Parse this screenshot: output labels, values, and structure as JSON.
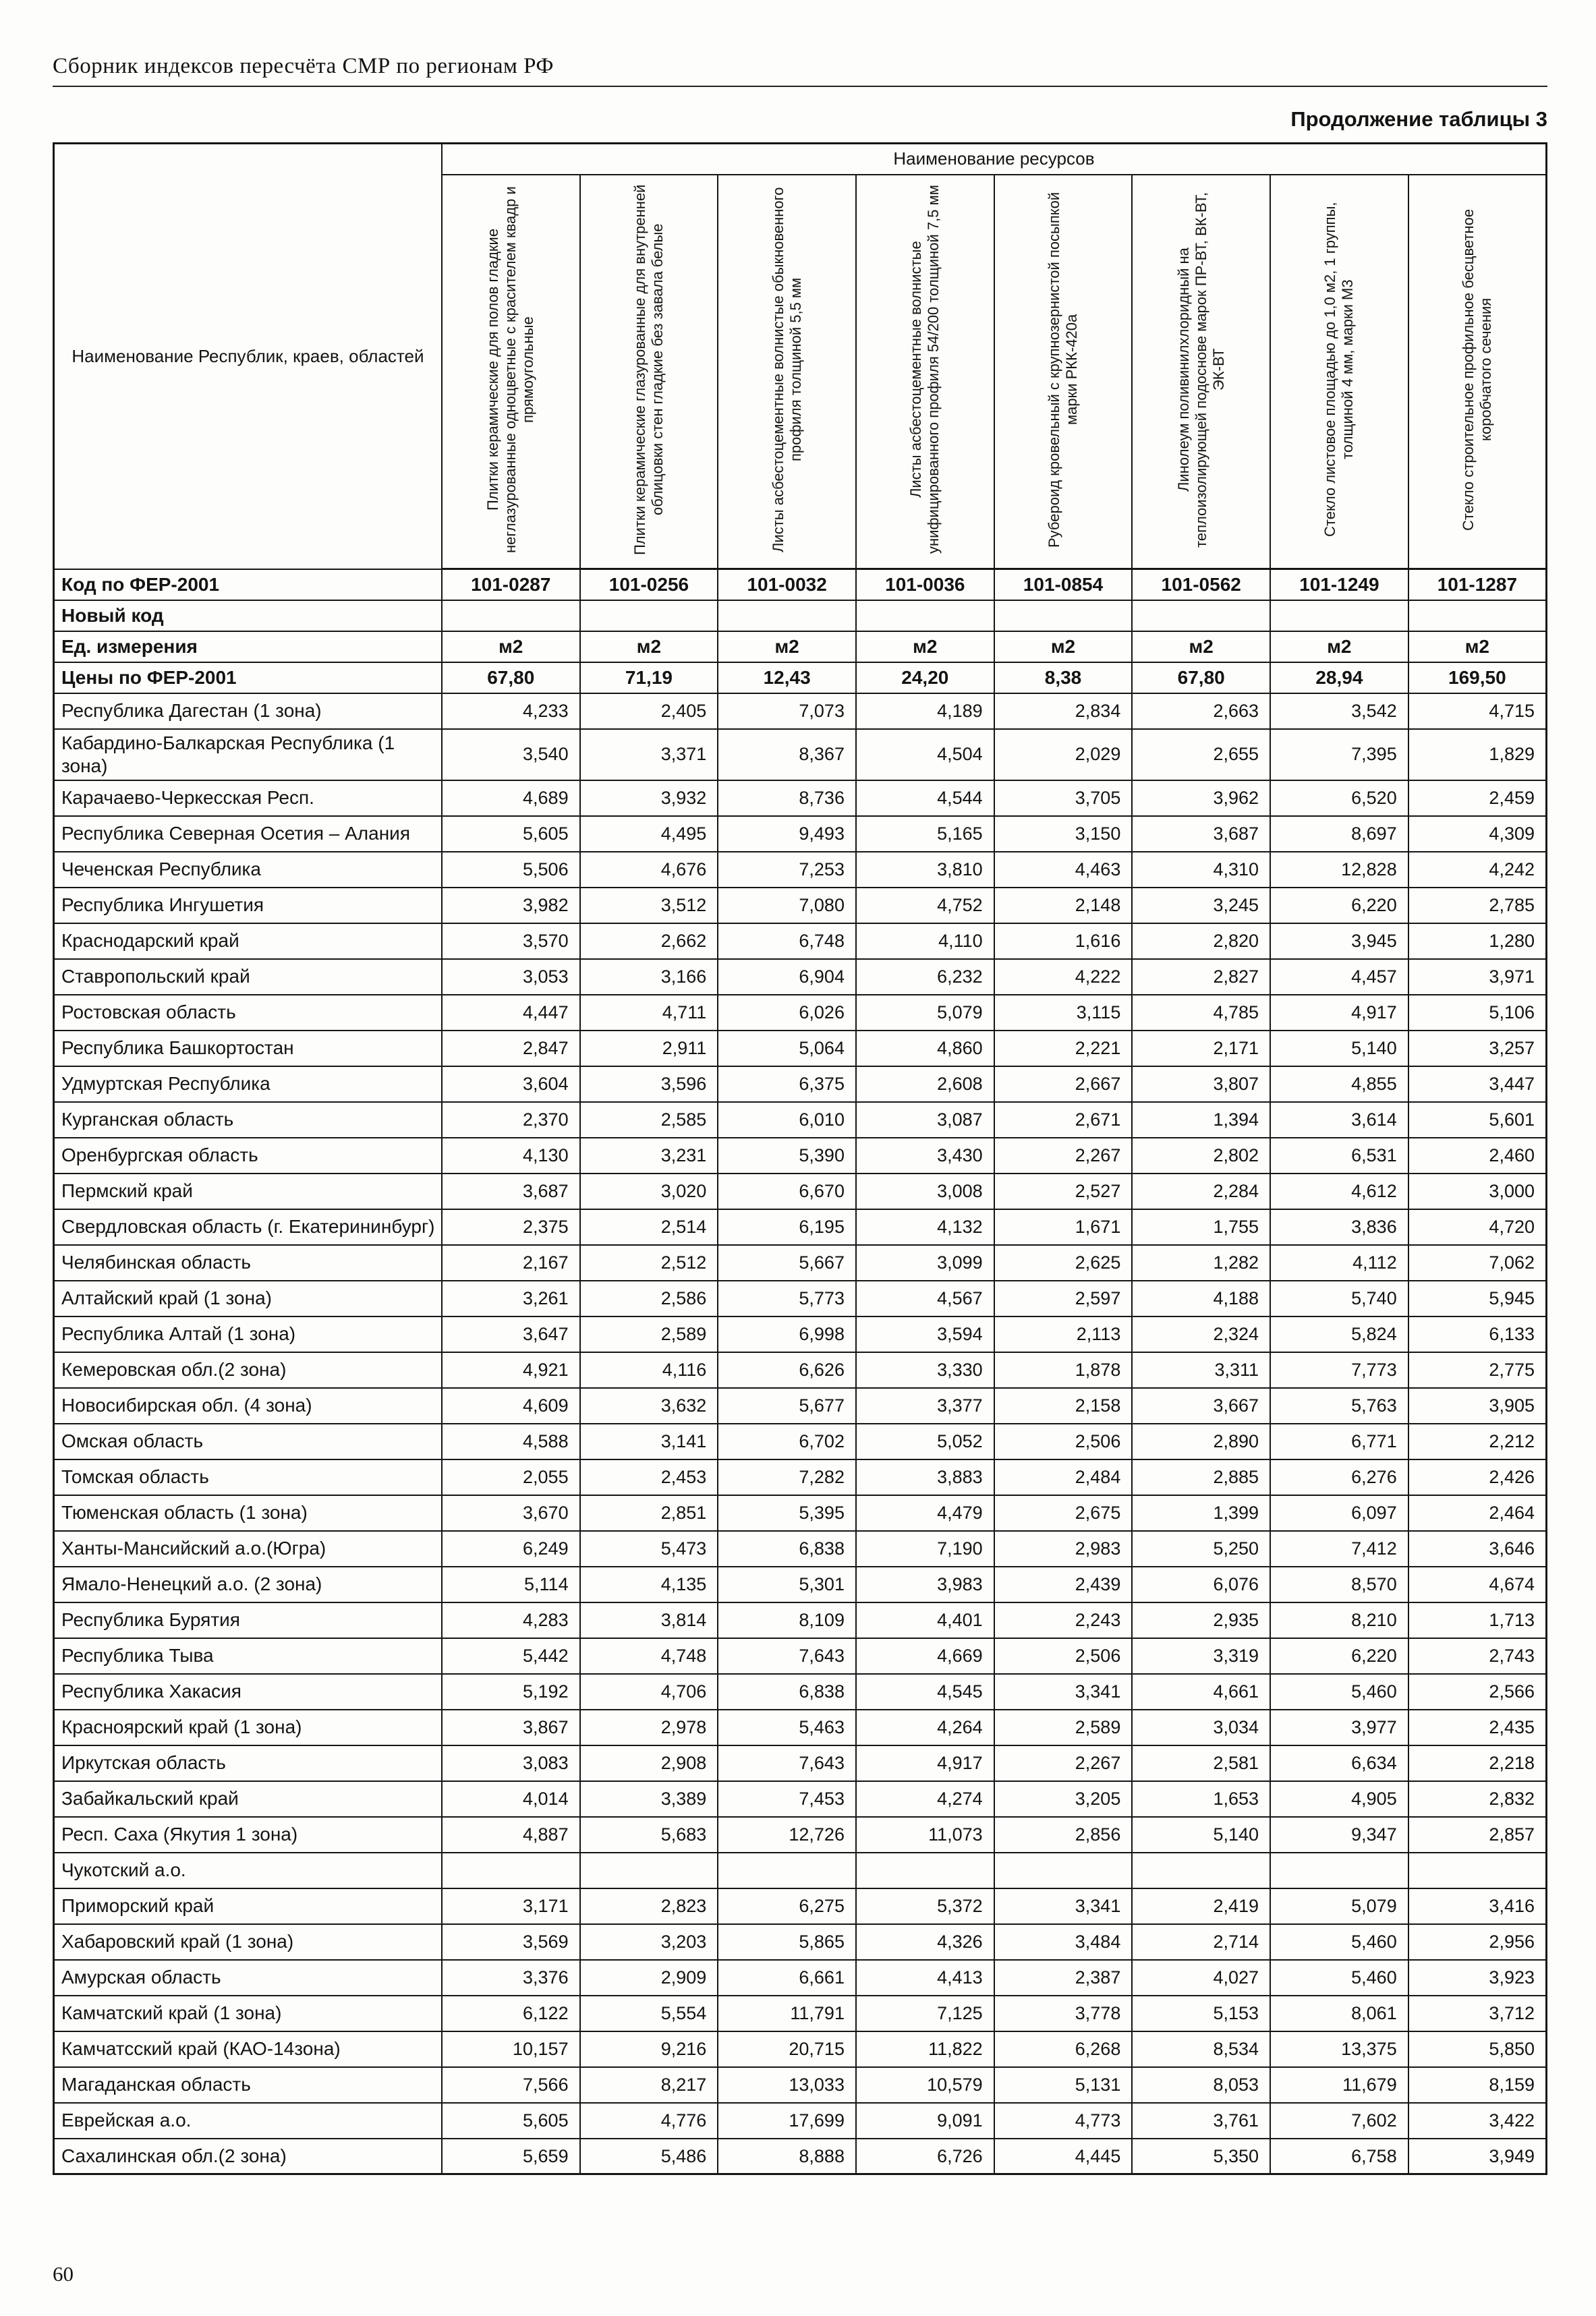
{
  "page": {
    "header_title": "Сборник индексов пересчёта СМР по регионам РФ",
    "table_caption": "Продолжение таблицы 3",
    "page_number": "60"
  },
  "table": {
    "resources_header": "Наименование ресурсов",
    "region_col_header": "Наименование Республик, краев, областей",
    "columns": [
      "Плитки керамические для полов гладкие неглазурованные одноцветные с красителем квадр и прямоугольные",
      "Плитки керамические глазурованные для внутренней облицовки стен гладкие без завала белые",
      "Листы асбестоцементные волнистые обыкновенного профиля толщиной 5,5 мм",
      "Листы асбестоцементные волнистые унифицированного профиля 54/200 толщиной 7,5 мм",
      "Рубероид кровельный с крупнозернистой посыпкой марки РКК-420а",
      "Линолеум поливинилхлоридный на теплоизолирующей подоснове марок ПР-ВТ, ВК-ВТ, ЭК-ВТ",
      "Стекло листовое площадью до 1,0 м2, 1 группы, толщиной 4 мм, марки М3",
      "Стекло строительное профильное бесцветное коробчатого сечения"
    ],
    "meta_rows": [
      {
        "label": "Код по ФЕР-2001",
        "values": [
          "101-0287",
          "101-0256",
          "101-0032",
          "101-0036",
          "101-0854",
          "101-0562",
          "101-1249",
          "101-1287"
        ]
      },
      {
        "label": "Новый код",
        "values": [
          "",
          "",
          "",
          "",
          "",
          "",
          "",
          ""
        ]
      },
      {
        "label": "Ед. измерения",
        "values": [
          "м2",
          "м2",
          "м2",
          "м2",
          "м2",
          "м2",
          "м2",
          "м2"
        ]
      },
      {
        "label": "Цены по ФЕР-2001",
        "values": [
          "67,80",
          "71,19",
          "12,43",
          "24,20",
          "8,38",
          "67,80",
          "28,94",
          "169,50"
        ]
      }
    ],
    "rows": [
      {
        "label": "Республика Дагестан (1 зона)",
        "values": [
          "4,233",
          "2,405",
          "7,073",
          "4,189",
          "2,834",
          "2,663",
          "3,542",
          "4,715"
        ]
      },
      {
        "label": "Кабардино-Балкарская Республика (1 зона)",
        "values": [
          "3,540",
          "3,371",
          "8,367",
          "4,504",
          "2,029",
          "2,655",
          "7,395",
          "1,829"
        ]
      },
      {
        "label": "Карачаево-Черкесская Респ.",
        "values": [
          "4,689",
          "3,932",
          "8,736",
          "4,544",
          "3,705",
          "3,962",
          "6,520",
          "2,459"
        ]
      },
      {
        "label": "Республика Северная Осетия – Алания",
        "values": [
          "5,605",
          "4,495",
          "9,493",
          "5,165",
          "3,150",
          "3,687",
          "8,697",
          "4,309"
        ]
      },
      {
        "label": "Чеченская Республика",
        "values": [
          "5,506",
          "4,676",
          "7,253",
          "3,810",
          "4,463",
          "4,310",
          "12,828",
          "4,242"
        ]
      },
      {
        "label": "Республика Ингушетия",
        "values": [
          "3,982",
          "3,512",
          "7,080",
          "4,752",
          "2,148",
          "3,245",
          "6,220",
          "2,785"
        ]
      },
      {
        "label": "Краснодарский край",
        "values": [
          "3,570",
          "2,662",
          "6,748",
          "4,110",
          "1,616",
          "2,820",
          "3,945",
          "1,280"
        ]
      },
      {
        "label": "Ставропольский край",
        "values": [
          "3,053",
          "3,166",
          "6,904",
          "6,232",
          "4,222",
          "2,827",
          "4,457",
          "3,971"
        ]
      },
      {
        "label": "Ростовская область",
        "values": [
          "4,447",
          "4,711",
          "6,026",
          "5,079",
          "3,115",
          "4,785",
          "4,917",
          "5,106"
        ]
      },
      {
        "label": "Республика Башкортостан",
        "values": [
          "2,847",
          "2,911",
          "5,064",
          "4,860",
          "2,221",
          "2,171",
          "5,140",
          "3,257"
        ]
      },
      {
        "label": "Удмуртская Республика",
        "values": [
          "3,604",
          "3,596",
          "6,375",
          "2,608",
          "2,667",
          "3,807",
          "4,855",
          "3,447"
        ]
      },
      {
        "label": "Курганская область",
        "values": [
          "2,370",
          "2,585",
          "6,010",
          "3,087",
          "2,671",
          "1,394",
          "3,614",
          "5,601"
        ]
      },
      {
        "label": "Оренбургская область",
        "values": [
          "4,130",
          "3,231",
          "5,390",
          "3,430",
          "2,267",
          "2,802",
          "6,531",
          "2,460"
        ]
      },
      {
        "label": "Пермский край",
        "values": [
          "3,687",
          "3,020",
          "6,670",
          "3,008",
          "2,527",
          "2,284",
          "4,612",
          "3,000"
        ]
      },
      {
        "label": "Свердловская область (г. Екатерининбург)",
        "values": [
          "2,375",
          "2,514",
          "6,195",
          "4,132",
          "1,671",
          "1,755",
          "3,836",
          "4,720"
        ]
      },
      {
        "label": "Челябинская область",
        "values": [
          "2,167",
          "2,512",
          "5,667",
          "3,099",
          "2,625",
          "1,282",
          "4,112",
          "7,062"
        ]
      },
      {
        "label": "Алтайский край (1 зона)",
        "values": [
          "3,261",
          "2,586",
          "5,773",
          "4,567",
          "2,597",
          "4,188",
          "5,740",
          "5,945"
        ]
      },
      {
        "label": "Республика Алтай (1 зона)",
        "values": [
          "3,647",
          "2,589",
          "6,998",
          "3,594",
          "2,113",
          "2,324",
          "5,824",
          "6,133"
        ]
      },
      {
        "label": "Кемеровская обл.(2 зона)",
        "values": [
          "4,921",
          "4,116",
          "6,626",
          "3,330",
          "1,878",
          "3,311",
          "7,773",
          "2,775"
        ]
      },
      {
        "label": "Новосибирская обл. (4 зона)",
        "values": [
          "4,609",
          "3,632",
          "5,677",
          "3,377",
          "2,158",
          "3,667",
          "5,763",
          "3,905"
        ]
      },
      {
        "label": "Омская область",
        "values": [
          "4,588",
          "3,141",
          "6,702",
          "5,052",
          "2,506",
          "2,890",
          "6,771",
          "2,212"
        ]
      },
      {
        "label": "Томская область",
        "values": [
          "2,055",
          "2,453",
          "7,282",
          "3,883",
          "2,484",
          "2,885",
          "6,276",
          "2,426"
        ]
      },
      {
        "label": "Тюменская область (1 зона)",
        "values": [
          "3,670",
          "2,851",
          "5,395",
          "4,479",
          "2,675",
          "1,399",
          "6,097",
          "2,464"
        ]
      },
      {
        "label": "Ханты-Мансийский а.о.(Югра)",
        "values": [
          "6,249",
          "5,473",
          "6,838",
          "7,190",
          "2,983",
          "5,250",
          "7,412",
          "3,646"
        ]
      },
      {
        "label": "Ямало-Ненецкий а.о. (2 зона)",
        "values": [
          "5,114",
          "4,135",
          "5,301",
          "3,983",
          "2,439",
          "6,076",
          "8,570",
          "4,674"
        ]
      },
      {
        "label": "Республика Бурятия",
        "values": [
          "4,283",
          "3,814",
          "8,109",
          "4,401",
          "2,243",
          "2,935",
          "8,210",
          "1,713"
        ]
      },
      {
        "label": "Республика Тыва",
        "values": [
          "5,442",
          "4,748",
          "7,643",
          "4,669",
          "2,506",
          "3,319",
          "6,220",
          "2,743"
        ]
      },
      {
        "label": "Республика Хакасия",
        "values": [
          "5,192",
          "4,706",
          "6,838",
          "4,545",
          "3,341",
          "4,661",
          "5,460",
          "2,566"
        ]
      },
      {
        "label": "Красноярский край (1 зона)",
        "values": [
          "3,867",
          "2,978",
          "5,463",
          "4,264",
          "2,589",
          "3,034",
          "3,977",
          "2,435"
        ]
      },
      {
        "label": "Иркутская область",
        "values": [
          "3,083",
          "2,908",
          "7,643",
          "4,917",
          "2,267",
          "2,581",
          "6,634",
          "2,218"
        ]
      },
      {
        "label": "Забайкальский край",
        "values": [
          "4,014",
          "3,389",
          "7,453",
          "4,274",
          "3,205",
          "1,653",
          "4,905",
          "2,832"
        ]
      },
      {
        "label": "Респ. Саха (Якутия 1 зона)",
        "values": [
          "4,887",
          "5,683",
          "12,726",
          "11,073",
          "2,856",
          "5,140",
          "9,347",
          "2,857"
        ]
      },
      {
        "label": "Чукотский а.о.",
        "values": [
          "",
          "",
          "",
          "",
          "",
          "",
          "",
          ""
        ]
      },
      {
        "label": "Приморский край",
        "values": [
          "3,171",
          "2,823",
          "6,275",
          "5,372",
          "3,341",
          "2,419",
          "5,079",
          "3,416"
        ]
      },
      {
        "label": "Хабаровский край (1 зона)",
        "values": [
          "3,569",
          "3,203",
          "5,865",
          "4,326",
          "3,484",
          "2,714",
          "5,460",
          "2,956"
        ]
      },
      {
        "label": "Амурская область",
        "values": [
          "3,376",
          "2,909",
          "6,661",
          "4,413",
          "2,387",
          "4,027",
          "5,460",
          "3,923"
        ]
      },
      {
        "label": "Камчатский край (1 зона)",
        "values": [
          "6,122",
          "5,554",
          "11,791",
          "7,125",
          "3,778",
          "5,153",
          "8,061",
          "3,712"
        ]
      },
      {
        "label": "Камчатсский край (КАО-14зона)",
        "values": [
          "10,157",
          "9,216",
          "20,715",
          "11,822",
          "6,268",
          "8,534",
          "13,375",
          "5,850"
        ]
      },
      {
        "label": "Магаданская область",
        "values": [
          "7,566",
          "8,217",
          "13,033",
          "10,579",
          "5,131",
          "8,053",
          "11,679",
          "8,159"
        ]
      },
      {
        "label": "Еврейская а.о.",
        "values": [
          "5,605",
          "4,776",
          "17,699",
          "9,091",
          "4,773",
          "3,761",
          "7,602",
          "3,422"
        ]
      },
      {
        "label": "Сахалинская обл.(2 зона)",
        "values": [
          "5,659",
          "5,486",
          "8,888",
          "6,726",
          "4,445",
          "5,350",
          "6,758",
          "3,949"
        ]
      }
    ]
  }
}
